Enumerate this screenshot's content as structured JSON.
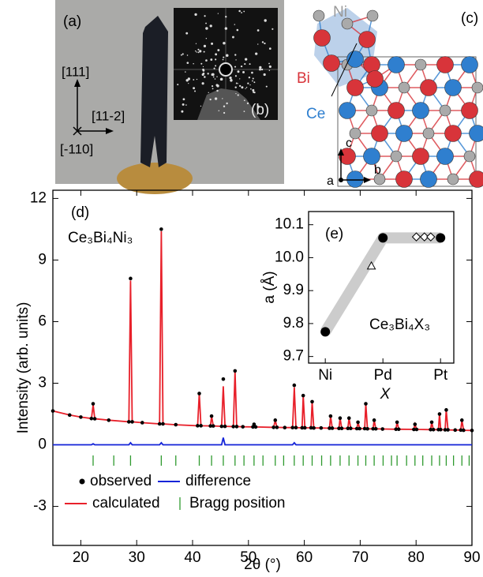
{
  "panels": {
    "a": {
      "label": "(a)",
      "directions": [
        "[111]",
        "[11-2]",
        "[-110]"
      ]
    },
    "b": {
      "label": "(b)"
    },
    "c": {
      "label": "(c)",
      "atoms": [
        "Ni",
        "Bi",
        "Ce"
      ],
      "axes": [
        "c",
        "a",
        "b"
      ]
    }
  },
  "chart_data": [
    {
      "type": "line",
      "panel_label": "(d)",
      "annotation": "Ce₃Bi₄Ni₃",
      "x_label": "2θ (°)",
      "y_label": "Intensity (arb. units)",
      "xlim": [
        15,
        90
      ],
      "xticks": [
        20,
        30,
        40,
        50,
        60,
        70,
        80,
        90
      ],
      "ylim": [
        -4.9,
        12.4
      ],
      "yticks": [
        -3,
        0,
        3,
        6,
        9,
        12
      ],
      "x": [
        15,
        18,
        20,
        21.9,
        22.2,
        22.5,
        25,
        28.6,
        28.9,
        29.2,
        31,
        34.1,
        34.4,
        34.7,
        37,
        40.9,
        41.2,
        41.5,
        43.2,
        43.4,
        43.7,
        45.2,
        45.5,
        45.8,
        47.3,
        47.6,
        47.9,
        49,
        50.8,
        51.0,
        51.3,
        54.5,
        54.8,
        55.1,
        56.5,
        57.9,
        58.2,
        58.5,
        59.6,
        59.8,
        60.1,
        61.2,
        61.4,
        61.7,
        63,
        64.5,
        64.7,
        65.0,
        66.2,
        66.4,
        66.7,
        67.8,
        68.0,
        68.3,
        69.4,
        69.6,
        69.9,
        70.8,
        71.0,
        71.3,
        72.3,
        72.5,
        72.8,
        74,
        76.4,
        76.6,
        76.9,
        79.6,
        79.8,
        80.1,
        82.6,
        82.8,
        83.1,
        84.0,
        84.2,
        84.4,
        85.2,
        85.4,
        85.7,
        87,
        88.0,
        88.2,
        88.5,
        90
      ],
      "series": [
        {
          "name": "calculated",
          "color": "#e8202a",
          "mode": "line",
          "values": [
            1.65,
            1.45,
            1.35,
            1.28,
            1.95,
            1.27,
            1.2,
            1.12,
            8.0,
            1.12,
            1.08,
            1.02,
            10.4,
            1.02,
            0.98,
            0.93,
            2.5,
            0.93,
            0.92,
            1.4,
            0.92,
            0.9,
            2.85,
            0.9,
            0.89,
            3.6,
            0.89,
            0.88,
            0.87,
            1.0,
            0.87,
            0.85,
            1.2,
            0.85,
            0.84,
            0.84,
            2.8,
            0.84,
            0.83,
            2.4,
            0.83,
            0.83,
            2.1,
            0.82,
            0.82,
            0.81,
            1.4,
            0.81,
            0.8,
            1.3,
            0.8,
            0.8,
            1.3,
            0.8,
            0.79,
            1.1,
            0.79,
            0.79,
            2.0,
            0.78,
            0.78,
            1.2,
            0.78,
            0.77,
            0.76,
            1.1,
            0.76,
            0.75,
            1.0,
            0.75,
            0.74,
            1.1,
            0.74,
            0.74,
            1.5,
            0.74,
            0.73,
            1.7,
            0.73,
            0.72,
            0.72,
            1.2,
            0.71,
            0.7
          ]
        },
        {
          "name": "observed",
          "color": "#000000",
          "mode": "markers",
          "values": [
            1.65,
            1.45,
            1.35,
            1.28,
            2.0,
            1.27,
            1.2,
            1.12,
            8.1,
            1.12,
            1.08,
            1.02,
            10.5,
            1.02,
            0.98,
            0.93,
            2.5,
            0.93,
            0.92,
            1.4,
            0.92,
            0.9,
            3.2,
            0.9,
            0.89,
            3.6,
            0.89,
            0.88,
            0.87,
            1.0,
            0.87,
            0.85,
            1.2,
            0.85,
            0.84,
            0.84,
            2.9,
            0.84,
            0.83,
            2.4,
            0.83,
            0.83,
            2.1,
            0.82,
            0.82,
            0.81,
            1.4,
            0.81,
            0.8,
            1.3,
            0.8,
            0.8,
            1.3,
            0.8,
            0.79,
            1.1,
            0.79,
            0.79,
            2.0,
            0.78,
            0.78,
            1.2,
            0.78,
            0.77,
            0.76,
            1.1,
            0.76,
            0.75,
            1.0,
            0.75,
            0.74,
            1.1,
            0.74,
            0.74,
            1.5,
            0.74,
            0.73,
            1.7,
            0.73,
            0.72,
            0.72,
            1.2,
            0.71,
            0.7
          ]
        },
        {
          "name": "difference",
          "color": "#1424d8",
          "mode": "line",
          "values": [
            0,
            0,
            0,
            0,
            0.05,
            0,
            0,
            0,
            0.1,
            0,
            0,
            0,
            0.1,
            0,
            0,
            0,
            0,
            0,
            0,
            0,
            0,
            0,
            0.35,
            0,
            0,
            0,
            0,
            0,
            0,
            0,
            0,
            0,
            0,
            0,
            0,
            0,
            0.1,
            0,
            0,
            0,
            0,
            0,
            0,
            0,
            0,
            0,
            0,
            0,
            0,
            0,
            0,
            0,
            0,
            0,
            0,
            0,
            0,
            0,
            0,
            0,
            0,
            0,
            0,
            0,
            0,
            0,
            0,
            0,
            0,
            0,
            0,
            0,
            0,
            0,
            0,
            0,
            0,
            0,
            0,
            0,
            0,
            0,
            0,
            0
          ]
        }
      ],
      "bragg": {
        "name": "Bragg position",
        "color": "#2f9a2f",
        "x": [
          22.2,
          25.9,
          28.9,
          34.4,
          37.0,
          41.2,
          43.4,
          45.5,
          47.6,
          49.2,
          51.0,
          52.6,
          54.8,
          56.3,
          58.2,
          59.8,
          61.4,
          63.1,
          64.7,
          66.4,
          68.0,
          69.6,
          71.0,
          72.5,
          74.1,
          75.6,
          76.6,
          78.3,
          79.8,
          81.2,
          82.8,
          84.2,
          85.4,
          86.7,
          88.2,
          89.5
        ]
      }
    },
    {
      "type": "scatter",
      "panel_label": "(e)",
      "annotation": "Ce₃Bi₄X₃",
      "x_label": "X",
      "y_label": "a (Å)",
      "xlim": [
        -0.29,
        2.23
      ],
      "xticks": [
        {
          "value": 0,
          "label": "Ni"
        },
        {
          "value": 1,
          "label": "Pd"
        },
        {
          "value": 2,
          "label": "Pt"
        }
      ],
      "ylim": [
        9.68,
        10.14
      ],
      "yticks": [
        9.7,
        9.8,
        9.9,
        {
          "value": 10.0,
          "label": "10.0"
        },
        10.1
      ],
      "series": [
        {
          "marker": "band",
          "color": "#cccccc",
          "x": [
            0,
            1,
            2
          ],
          "values": [
            9.775,
            10.06,
            10.06
          ]
        },
        {
          "marker": "triangle",
          "color": "#000000",
          "x": [
            0.8
          ],
          "values": [
            9.975
          ]
        },
        {
          "marker": "diamond",
          "color": "#000000",
          "x": [
            1.58,
            1.72,
            1.83
          ],
          "values": [
            10.063,
            10.063,
            10.063
          ]
        },
        {
          "marker": "circle",
          "color": "#000000",
          "x": [
            0,
            1,
            2
          ],
          "values": [
            9.775,
            10.06,
            10.06
          ]
        }
      ]
    }
  ]
}
